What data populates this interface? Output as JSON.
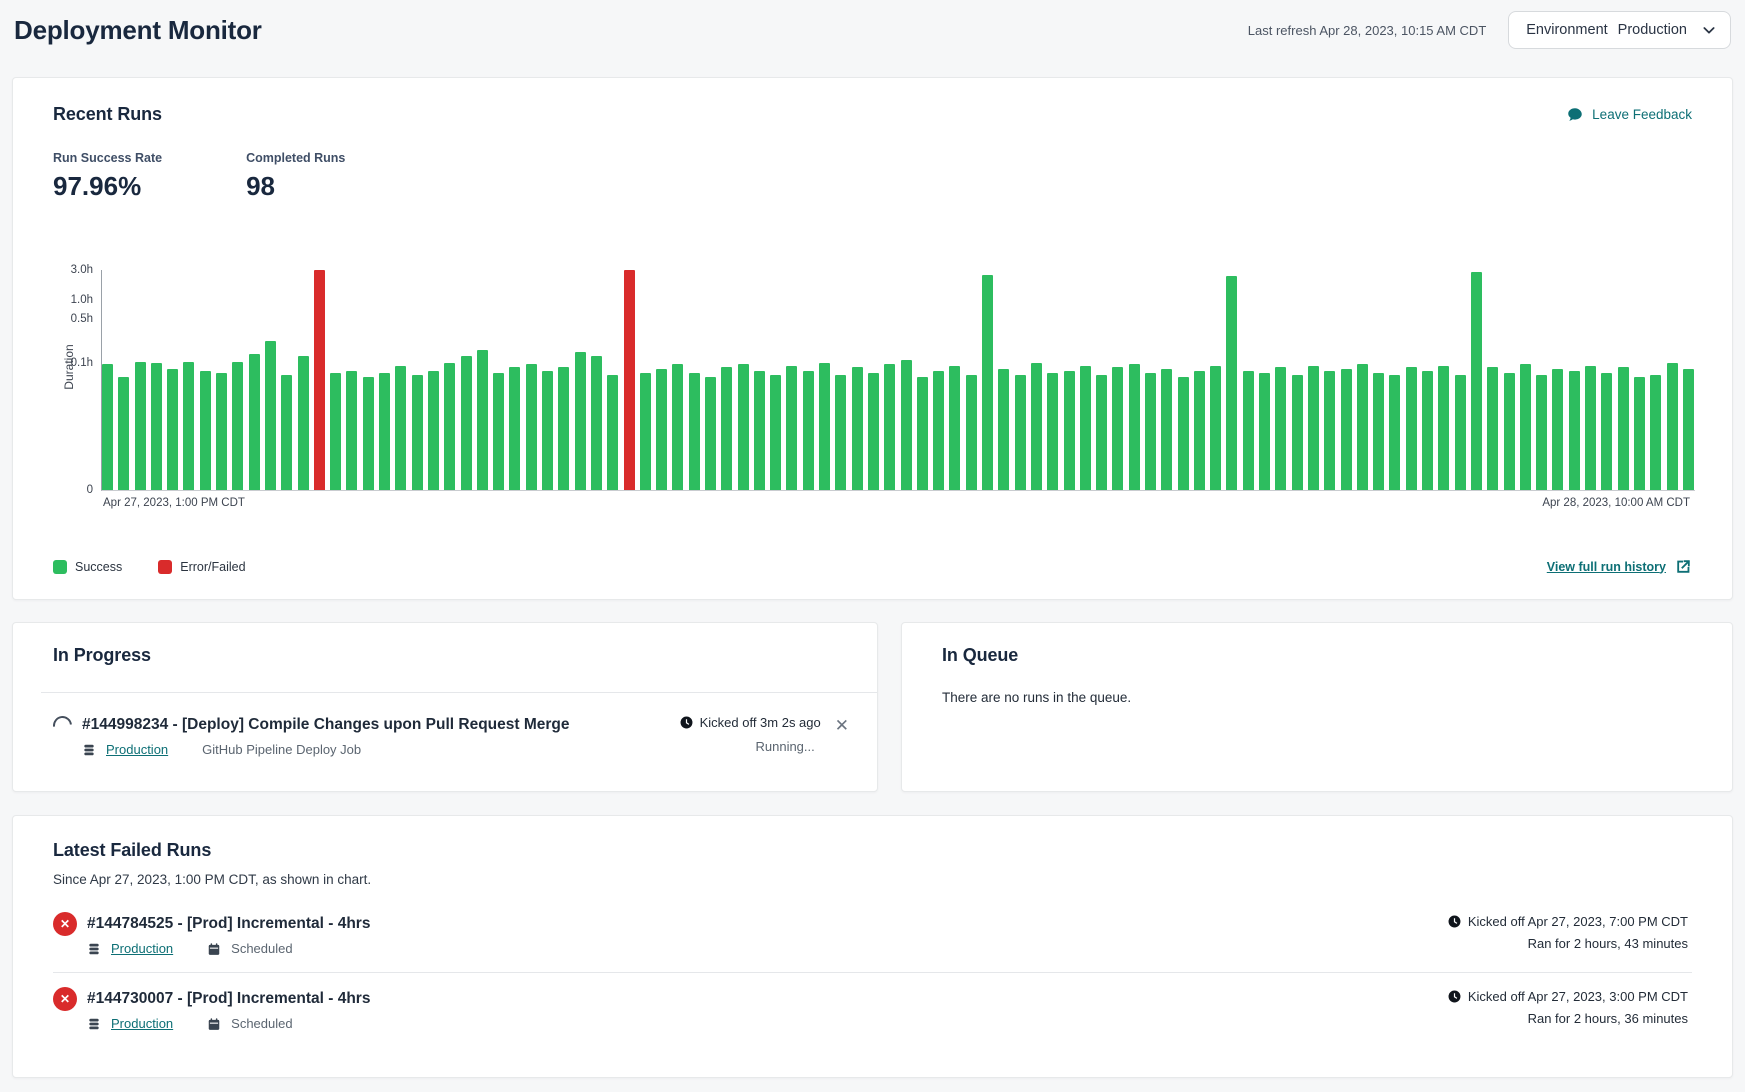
{
  "header": {
    "title": "Deployment Monitor",
    "last_refresh": "Last refresh Apr 28, 2023, 10:15 AM CDT",
    "environment_label": "Environment",
    "environment_value": "Production"
  },
  "recent_runs": {
    "title": "Recent Runs",
    "feedback_label": "Leave Feedback",
    "kpis": [
      {
        "label": "Run Success Rate",
        "value": "97.96%"
      },
      {
        "label": "Completed Runs",
        "value": "98"
      }
    ],
    "legend": [
      {
        "label": "Success"
      },
      {
        "label": "Error/Failed"
      }
    ],
    "view_history_label": "View full run history"
  },
  "chart_data": {
    "type": "bar",
    "ylabel": "Duration",
    "y_scale": "log",
    "y_ticks": [
      "0",
      "0.1h",
      "0.5h",
      "1.0h",
      "3.0h"
    ],
    "x_start_label": "Apr 27, 2023, 1:00 PM CDT",
    "x_end_label": "Apr 28, 2023, 10:00 AM CDT",
    "unit": "hours",
    "values": [
      0.095,
      0.06,
      0.105,
      0.1,
      0.08,
      0.105,
      0.075,
      0.07,
      0.105,
      0.14,
      0.22,
      0.065,
      0.13,
      3.0,
      0.07,
      0.075,
      0.06,
      0.07,
      0.09,
      0.065,
      0.075,
      0.1,
      0.13,
      0.16,
      0.07,
      0.085,
      0.095,
      0.075,
      0.085,
      0.15,
      0.13,
      0.065,
      3.0,
      0.07,
      0.08,
      0.095,
      0.07,
      0.06,
      0.085,
      0.095,
      0.075,
      0.065,
      0.09,
      0.075,
      0.1,
      0.065,
      0.085,
      0.07,
      0.095,
      0.11,
      0.06,
      0.075,
      0.09,
      0.065,
      2.5,
      0.08,
      0.065,
      0.1,
      0.07,
      0.075,
      0.09,
      0.065,
      0.085,
      0.095,
      0.07,
      0.08,
      0.06,
      0.075,
      0.09,
      2.4,
      0.075,
      0.07,
      0.085,
      0.065,
      0.09,
      0.075,
      0.08,
      0.095,
      0.07,
      0.065,
      0.085,
      0.075,
      0.09,
      0.065,
      2.8,
      0.085,
      0.07,
      0.095,
      0.065,
      0.08,
      0.075,
      0.09,
      0.07,
      0.085,
      0.06,
      0.065,
      0.1,
      0.08
    ],
    "error_indices": [
      13,
      32
    ],
    "colors": {
      "success": "#2dbd5f",
      "error": "#d92b2b"
    }
  },
  "in_progress": {
    "title": "In Progress",
    "run": {
      "title": "#144998234 - [Deploy] Compile Changes upon Pull Request Merge",
      "environment": "Production",
      "job_type": "GitHub Pipeline Deploy Job",
      "kicked_off": "Kicked off 3m 2s ago",
      "status": "Running..."
    }
  },
  "in_queue": {
    "title": "In Queue",
    "empty_text": "There are no runs in the queue."
  },
  "failed_runs": {
    "title": "Latest Failed Runs",
    "subtitle": "Since Apr 27, 2023, 1:00 PM CDT, as shown in chart.",
    "runs": [
      {
        "title": "#144784525 - [Prod] Incremental - 4hrs",
        "environment": "Production",
        "schedule": "Scheduled",
        "kicked_off": "Kicked off Apr 27, 2023, 7:00 PM CDT",
        "ran_for": "Ran for 2 hours, 43 minutes"
      },
      {
        "title": "#144730007 - [Prod] Incremental - 4hrs",
        "environment": "Production",
        "schedule": "Scheduled",
        "kicked_off": "Kicked off Apr 27, 2023, 3:00 PM CDT",
        "ran_for": "Ran for 2 hours, 36 minutes"
      }
    ]
  }
}
